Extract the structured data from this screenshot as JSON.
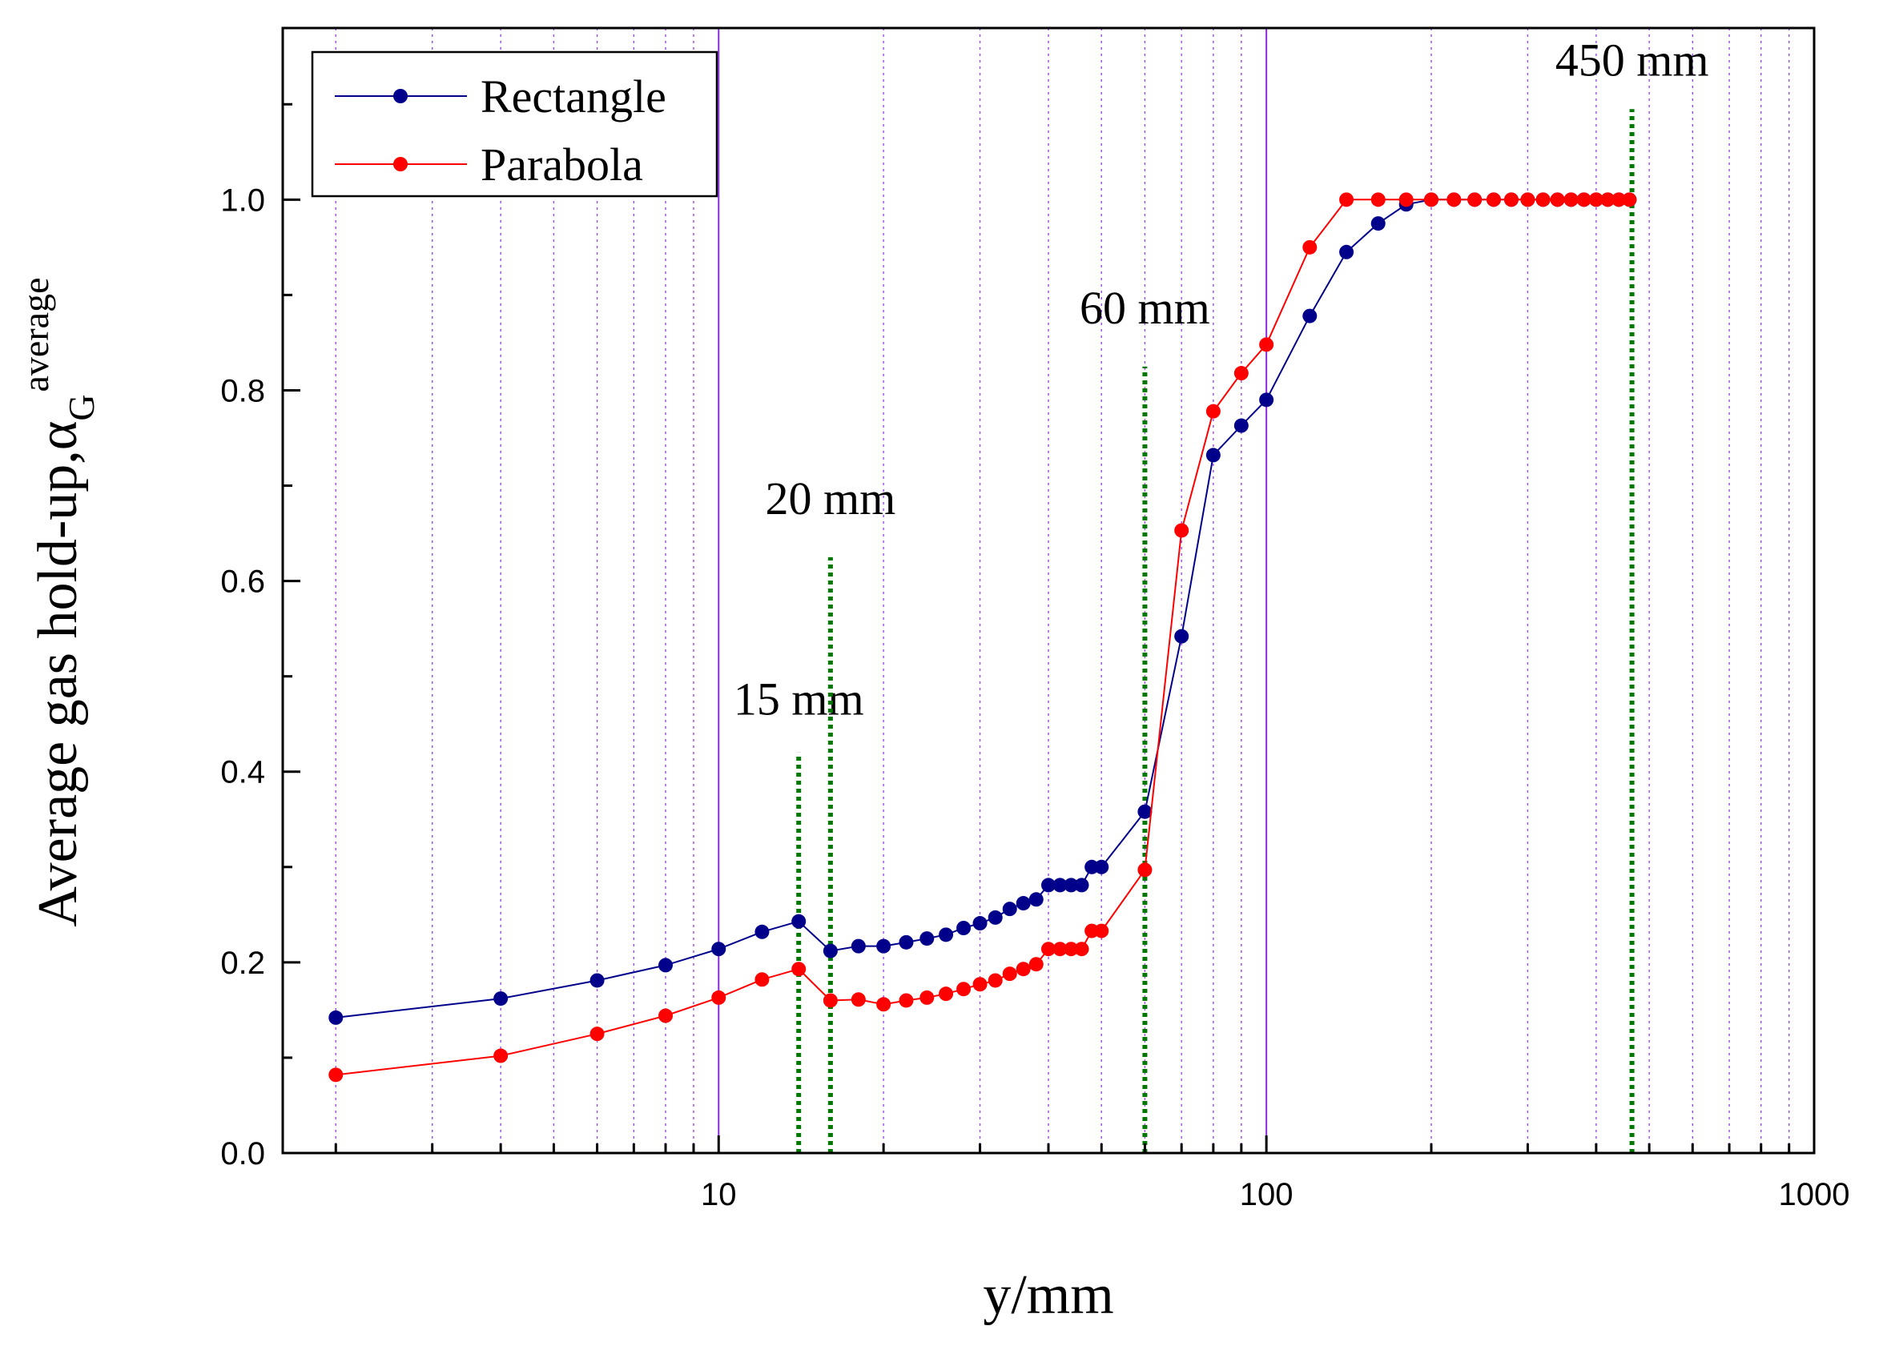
{
  "chart_data": {
    "type": "line",
    "x_scale": "log",
    "xlabel": "y/mm",
    "ylabel": "Average gas hold-up,α",
    "ylabel_sub": "G",
    "ylabel_sup": "average",
    "xlim": [
      1.6,
      1000
    ],
    "ylim": [
      0,
      1.18
    ],
    "x_tick_labels": [
      {
        "value": 10,
        "label": "10"
      },
      {
        "value": 100,
        "label": "100"
      },
      {
        "value": 1000,
        "label": "1000"
      }
    ],
    "y_tick_labels": [
      {
        "value": 0.0,
        "label": "0.0"
      },
      {
        "value": 0.2,
        "label": "0.2"
      },
      {
        "value": 0.4,
        "label": "0.4"
      },
      {
        "value": 0.6,
        "label": "0.6"
      },
      {
        "value": 0.8,
        "label": "0.8"
      },
      {
        "value": 1.0,
        "label": "1.0"
      }
    ],
    "y_minor_ticks": [
      0.1,
      0.3,
      0.5,
      0.7,
      0.9,
      1.1
    ],
    "legend": {
      "position": "top-left"
    },
    "series": [
      {
        "name": "Rectangle",
        "color": "#00008B",
        "x": [
          2,
          4,
          6,
          8,
          10,
          12,
          14,
          16,
          18,
          20,
          22,
          24,
          26,
          28,
          30,
          32,
          34,
          36,
          38,
          40,
          42,
          44,
          46,
          48,
          50,
          60,
          70,
          80,
          90,
          100,
          120,
          140,
          160,
          180,
          200,
          220,
          240,
          260,
          280,
          300,
          320,
          340,
          360,
          380,
          400,
          420,
          440,
          460
        ],
        "y": [
          0.142,
          0.162,
          0.181,
          0.197,
          0.214,
          0.232,
          0.243,
          0.212,
          0.217,
          0.217,
          0.221,
          0.225,
          0.229,
          0.236,
          0.241,
          0.247,
          0.256,
          0.262,
          0.266,
          0.281,
          0.281,
          0.281,
          0.281,
          0.3,
          0.3,
          0.358,
          0.542,
          0.732,
          0.763,
          0.79,
          0.878,
          0.945,
          0.975,
          0.995,
          1.0,
          1.0,
          1.0,
          1.0,
          1.0,
          1.0,
          1.0,
          1.0,
          1.0,
          1.0,
          1.0,
          1.0,
          1.0,
          1.0
        ]
      },
      {
        "name": "Parabola",
        "color": "#FF0000",
        "x": [
          2,
          4,
          6,
          8,
          10,
          12,
          14,
          16,
          18,
          20,
          22,
          24,
          26,
          28,
          30,
          32,
          34,
          36,
          38,
          40,
          42,
          44,
          46,
          48,
          50,
          60,
          70,
          80,
          90,
          100,
          120,
          140,
          160,
          180,
          200,
          220,
          240,
          260,
          280,
          300,
          320,
          340,
          360,
          380,
          400,
          420,
          440,
          460
        ],
        "y": [
          0.082,
          0.102,
          0.125,
          0.144,
          0.163,
          0.182,
          0.193,
          0.16,
          0.161,
          0.156,
          0.16,
          0.163,
          0.167,
          0.172,
          0.177,
          0.181,
          0.188,
          0.193,
          0.198,
          0.214,
          0.214,
          0.214,
          0.214,
          0.233,
          0.233,
          0.297,
          0.653,
          0.778,
          0.818,
          0.848,
          0.95,
          1.0,
          1.0,
          1.0,
          1.0,
          1.0,
          1.0,
          1.0,
          1.0,
          1.0,
          1.0,
          1.0,
          1.0,
          1.0,
          1.0,
          1.0,
          1.0,
          1.0
        ]
      }
    ],
    "reference_lines": [
      {
        "x": 14,
        "y_top": 0.42,
        "label": "15 mm",
        "label_y": 0.46,
        "color": "#007700"
      },
      {
        "x": 16,
        "y_top": 0.625,
        "label": "20 mm",
        "label_y": 0.67,
        "color": "#007700"
      },
      {
        "x": 60,
        "y_top": 0.825,
        "label": "60 mm",
        "label_y": 0.87,
        "color": "#007700"
      },
      {
        "x": 465,
        "y_top": 1.095,
        "label": "450 mm",
        "label_y": 1.13,
        "color": "#007700"
      }
    ],
    "grid": {
      "x_major": true,
      "x_minor": true,
      "color": "#8A2BE2"
    }
  }
}
